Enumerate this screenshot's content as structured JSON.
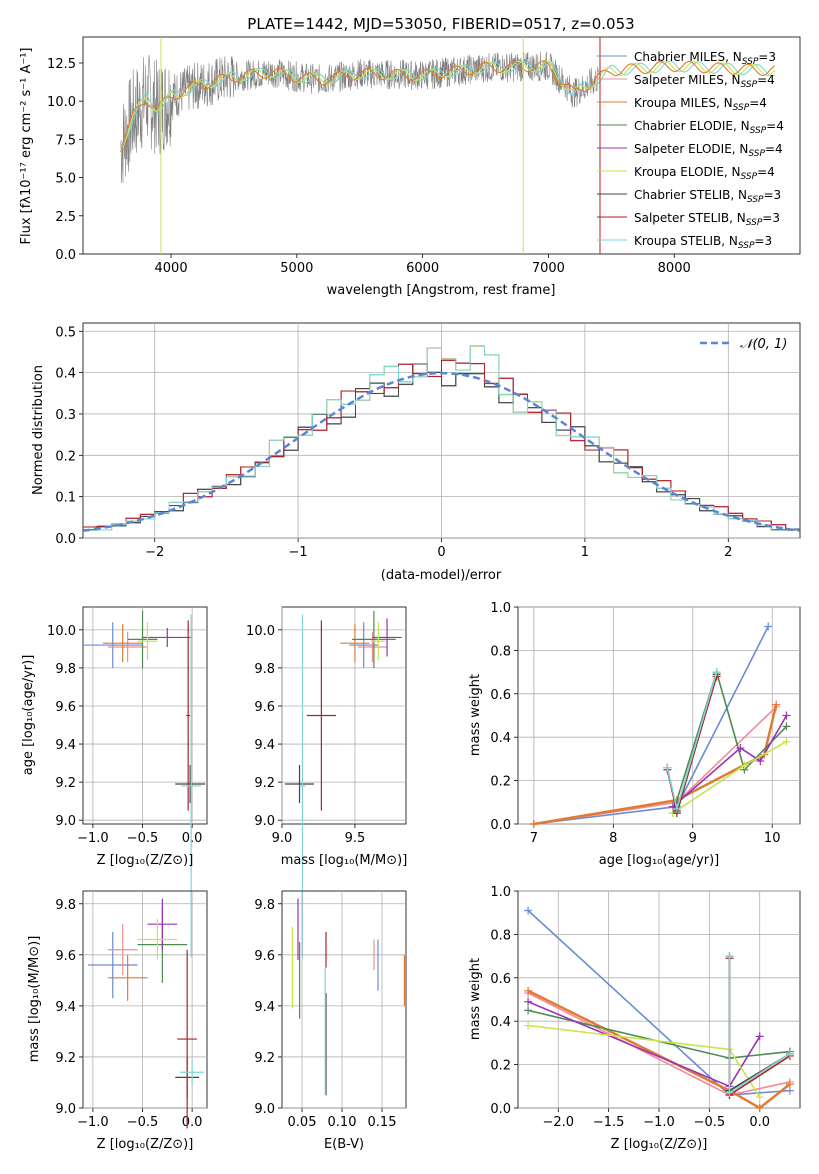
{
  "colors": [
    "#6a8bd8",
    "#f28c92",
    "#e07a35",
    "#4f8a4f",
    "#9932b5",
    "#c8e64a",
    "#444444",
    "#b22222",
    "#7fd4d8"
  ],
  "chart_data": [
    {
      "type": "line",
      "title": "PLATE=1442, MJD=53050, FIBERID=0517, z=0.053",
      "xlabel": "wavelength [Angstrom, rest frame]",
      "ylabel": "Flux [fλ10⁻¹⁷ erg cm⁻² s⁻¹ A⁻¹]",
      "xlim": [
        3300,
        9000
      ],
      "ylim": [
        0,
        14.2
      ],
      "xticks": [
        "4000",
        "5000",
        "6000",
        "7000",
        "8000"
      ],
      "yticks": [
        "0.0",
        "2.5",
        "5.0",
        "7.5",
        "10.0",
        "12.5"
      ],
      "legend": [
        "Chabrier MILES, N_SSP=3",
        "Salpeter MILES, N_SSP=4",
        "Kroupa MILES, N_SSP=4",
        "Chabrier ELODIE, N_SSP=4",
        "Salpeter ELODIE, N_SSP=4",
        "Kroupa ELODIE, N_SSP=4",
        "Chabrier STELIB, N_SSP=3",
        "Salpeter STELIB, N_SSP=3",
        "Kroupa STELIB, N_SSP=3"
      ],
      "legend_position": "upper-right",
      "spectrum_envelope": {
        "x": [
          3600,
          3700,
          3800,
          3900,
          4000,
          4200,
          4500,
          4800,
          5000,
          5200,
          5500,
          6000,
          6500,
          7000,
          7200,
          7500,
          8000,
          8500,
          8800
        ],
        "y": [
          7.0,
          9.0,
          10.2,
          9.5,
          10.3,
          11.0,
          11.6,
          11.9,
          11.6,
          11.4,
          11.8,
          11.7,
          12.2,
          12.3,
          10.5,
          12.0,
          12.3,
          12.1,
          12.0
        ]
      }
    },
    {
      "type": "line",
      "xlabel": "(data-model)/error",
      "ylabel": "Normed distribution",
      "xlim": [
        -2.5,
        2.5
      ],
      "ylim": [
        0,
        0.52
      ],
      "xticks": [
        "−2",
        "−1",
        "0",
        "1",
        "2"
      ],
      "yticks": [
        "0.0",
        "0.1",
        "0.2",
        "0.3",
        "0.4",
        "0.5"
      ],
      "legend": [
        "𝒩(0, 1)"
      ],
      "bin_centers": [
        -2.45,
        -2.35,
        -2.25,
        -2.15,
        -2.05,
        -1.95,
        -1.85,
        -1.75,
        -1.65,
        -1.55,
        -1.45,
        -1.35,
        -1.25,
        -1.15,
        -1.05,
        -0.95,
        -0.85,
        -0.75,
        -0.65,
        -0.55,
        -0.45,
        -0.35,
        -0.25,
        -0.15,
        -0.05,
        0.05,
        0.15,
        0.25,
        0.35,
        0.45,
        0.55,
        0.65,
        0.75,
        0.85,
        0.95,
        1.05,
        1.15,
        1.25,
        1.35,
        1.45,
        1.55,
        1.65,
        1.75,
        1.85,
        1.95,
        2.05,
        2.15,
        2.25,
        2.35,
        2.45
      ],
      "series": [
        {
          "values": [
            0.02,
            0.025,
            0.03,
            0.04,
            0.05,
            0.06,
            0.07,
            0.09,
            0.11,
            0.12,
            0.14,
            0.15,
            0.17,
            0.2,
            0.23,
            0.26,
            0.28,
            0.29,
            0.31,
            0.34,
            0.36,
            0.37,
            0.38,
            0.39,
            0.4,
            0.4,
            0.39,
            0.37,
            0.38,
            0.35,
            0.33,
            0.3,
            0.3,
            0.27,
            0.25,
            0.22,
            0.2,
            0.18,
            0.16,
            0.14,
            0.12,
            0.1,
            0.09,
            0.07,
            0.06,
            0.05,
            0.04,
            0.03,
            0.02,
            0.02
          ]
        },
        {
          "values": [
            0.025,
            0.03,
            0.035,
            0.045,
            0.055,
            0.065,
            0.08,
            0.1,
            0.1,
            0.13,
            0.15,
            0.16,
            0.19,
            0.21,
            0.23,
            0.25,
            0.28,
            0.3,
            0.33,
            0.35,
            0.38,
            0.36,
            0.39,
            0.41,
            0.42,
            0.41,
            0.4,
            0.45,
            0.39,
            0.36,
            0.34,
            0.33,
            0.31,
            0.28,
            0.24,
            0.23,
            0.21,
            0.2,
            0.18,
            0.15,
            0.13,
            0.11,
            0.09,
            0.08,
            0.07,
            0.06,
            0.05,
            0.04,
            0.03,
            0.02
          ]
        },
        {
          "values": [
            0.02,
            0.02,
            0.03,
            0.04,
            0.05,
            0.06,
            0.08,
            0.09,
            0.12,
            0.12,
            0.14,
            0.16,
            0.18,
            0.22,
            0.24,
            0.27,
            0.3,
            0.31,
            0.33,
            0.36,
            0.38,
            0.39,
            0.4,
            0.41,
            0.43,
            0.42,
            0.44,
            0.47,
            0.41,
            0.35,
            0.33,
            0.32,
            0.29,
            0.26,
            0.26,
            0.23,
            0.21,
            0.17,
            0.15,
            0.14,
            0.12,
            0.1,
            0.08,
            0.07,
            0.06,
            0.05,
            0.04,
            0.03,
            0.02,
            0.02
          ]
        }
      ],
      "normal_curve": {
        "mean": 0,
        "sigma": 1
      }
    },
    {
      "type": "scatter",
      "xlabel": "Z [log₁₀(Z/Z⊙)]",
      "ylabel": "age  [log₁₀(age/yr)]",
      "xlim": [
        -1.1,
        0.15
      ],
      "ylim": [
        8.98,
        10.12
      ],
      "xticks": [
        "−1.0",
        "−0.5",
        "0.0"
      ],
      "yticks": [
        "9.0",
        "9.2",
        "9.4",
        "9.6",
        "9.8",
        "10.0"
      ],
      "points": [
        {
          "x": -0.8,
          "y": 9.92,
          "xerr": 0.3,
          "yerr": 0.12
        },
        {
          "x": -0.65,
          "y": 9.91,
          "xerr": 0.2,
          "yerr": 0.08
        },
        {
          "x": -0.7,
          "y": 9.93,
          "xerr": 0.2,
          "yerr": 0.1
        },
        {
          "x": -0.5,
          "y": 9.95,
          "xerr": 0.15,
          "yerr": 0.15
        },
        {
          "x": -0.25,
          "y": 9.96,
          "xerr": 0.25,
          "yerr": 0.05
        },
        {
          "x": -0.45,
          "y": 9.94,
          "xerr": 0.1,
          "yerr": 0.1
        },
        {
          "x": -0.02,
          "y": 9.19,
          "xerr": 0.15,
          "yerr": 0.1
        },
        {
          "x": -0.04,
          "y": 9.55,
          "xerr": 0.02,
          "yerr": 0.5
        },
        {
          "x": -0.01,
          "y": 9.18,
          "xerr": 0.1,
          "yerr": 0.9
        }
      ]
    },
    {
      "type": "scatter",
      "xlabel": "mass [log₁₀(M/M⊙)]",
      "ylabel": "",
      "xlim": [
        9.0,
        9.85
      ],
      "ylim": [
        8.98,
        10.12
      ],
      "xticks": [
        "9.0",
        "9.5"
      ],
      "yticks": [
        "9.0",
        "9.2",
        "9.4",
        "9.6",
        "9.8",
        "10.0"
      ],
      "points": [
        {
          "x": 9.56,
          "y": 9.92,
          "xerr": 0.1,
          "yerr": 0.12
        },
        {
          "x": 9.62,
          "y": 9.91,
          "xerr": 0.1,
          "yerr": 0.08
        },
        {
          "x": 9.5,
          "y": 9.93,
          "xerr": 0.1,
          "yerr": 0.1
        },
        {
          "x": 9.63,
          "y": 9.95,
          "xerr": 0.15,
          "yerr": 0.15
        },
        {
          "x": 9.72,
          "y": 9.96,
          "xerr": 0.1,
          "yerr": 0.1
        },
        {
          "x": 9.66,
          "y": 9.94,
          "xerr": 0.05,
          "yerr": 0.1
        },
        {
          "x": 9.12,
          "y": 9.19,
          "xerr": 0.1,
          "yerr": 0.1
        },
        {
          "x": 9.27,
          "y": 9.55,
          "xerr": 0.1,
          "yerr": 0.5
        },
        {
          "x": 9.14,
          "y": 9.18,
          "xerr": 0.02,
          "yerr": 0.9
        }
      ]
    },
    {
      "type": "line",
      "xlabel": "age  [log₁₀(age/yr)]",
      "ylabel": "mass weight",
      "xlim": [
        6.8,
        10.35
      ],
      "ylim": [
        0,
        1.0
      ],
      "xticks": [
        "7",
        "8",
        "9",
        "10"
      ],
      "yticks": [
        "0.0",
        "0.2",
        "0.4",
        "0.6",
        "0.8",
        "1.0"
      ],
      "series": [
        {
          "x": [
            7.0,
            8.8,
            9.95
          ],
          "y": [
            0.0,
            0.08,
            0.91
          ]
        },
        {
          "x": [
            7.0,
            8.8,
            10.05
          ],
          "y": [
            0.0,
            0.1,
            0.54
          ]
        },
        {
          "x": [
            7.0,
            8.8,
            9.9,
            10.05
          ],
          "y": [
            0.0,
            0.11,
            0.32,
            0.55
          ]
        },
        {
          "x": [
            8.75,
            9.3,
            9.65,
            10.18
          ],
          "y": [
            0.05,
            0.7,
            0.25,
            0.45
          ]
        },
        {
          "x": [
            8.75,
            9.6,
            9.85,
            10.18
          ],
          "y": [
            0.08,
            0.35,
            0.29,
            0.5
          ]
        },
        {
          "x": [
            8.75,
            9.65,
            10.18
          ],
          "y": [
            0.05,
            0.27,
            0.38
          ]
        },
        {
          "x": [
            8.68,
            8.8,
            9.3
          ],
          "y": [
            0.26,
            0.05,
            0.69
          ]
        },
        {
          "x": [
            8.68,
            8.8,
            9.3
          ],
          "y": [
            0.25,
            0.06,
            0.68
          ]
        },
        {
          "x": [
            8.68,
            8.8,
            9.3
          ],
          "y": [
            0.26,
            0.07,
            0.7
          ]
        }
      ]
    },
    {
      "type": "scatter",
      "xlabel": "Z [log₁₀(Z/Z⊙)]",
      "ylabel": "mass [log₁₀(M/M⊙)]",
      "xlim": [
        -1.1,
        0.15
      ],
      "ylim": [
        9.0,
        9.85
      ],
      "xticks": [
        "−1.0",
        "−0.5",
        "0.0"
      ],
      "yticks": [
        "9.0",
        "9.2",
        "9.4",
        "9.6",
        "9.8"
      ],
      "points": [
        {
          "x": -0.8,
          "y": 9.56,
          "xerr": 0.25,
          "yerr": 0.13
        },
        {
          "x": -0.7,
          "y": 9.62,
          "xerr": 0.15,
          "yerr": 0.1
        },
        {
          "x": -0.65,
          "y": 9.51,
          "xerr": 0.2,
          "yerr": 0.09
        },
        {
          "x": -0.3,
          "y": 9.64,
          "xerr": 0.25,
          "yerr": 0.15
        },
        {
          "x": -0.3,
          "y": 9.72,
          "xerr": 0.15,
          "yerr": 0.1
        },
        {
          "x": -0.35,
          "y": 9.66,
          "xerr": 0.2,
          "yerr": 0.08
        },
        {
          "x": -0.05,
          "y": 9.12,
          "xerr": 0.12,
          "yerr": 0.08
        },
        {
          "x": -0.05,
          "y": 9.27,
          "xerr": 0.1,
          "yerr": 0.35
        },
        {
          "x": 0.0,
          "y": 9.14,
          "xerr": 0.12,
          "yerr": 0.05
        }
      ]
    },
    {
      "type": "scatter",
      "xlabel": "E(B-V)",
      "ylabel": "",
      "xlim": [
        0.025,
        0.18
      ],
      "ylim": [
        9.0,
        9.85
      ],
      "xticks": [
        "0.05",
        "0.10",
        "0.15"
      ],
      "yticks": [
        "9.0",
        "9.2",
        "9.4",
        "9.6",
        "9.8"
      ],
      "points": [
        {
          "x": 0.145,
          "y": 9.56,
          "yerr": 0.1
        },
        {
          "x": 0.14,
          "y": 9.6,
          "yerr": 0.06
        },
        {
          "x": 0.178,
          "y": 9.5,
          "yerr": 0.1
        },
        {
          "x": 0.047,
          "y": 9.5,
          "yerr": 0.15
        },
        {
          "x": 0.045,
          "y": 9.7,
          "yerr": 0.12
        },
        {
          "x": 0.038,
          "y": 9.55,
          "yerr": 0.16
        },
        {
          "x": 0.08,
          "y": 9.25,
          "yerr": 0.2
        },
        {
          "x": 0.08,
          "y": 9.62,
          "yerr": 0.07
        },
        {
          "x": 0.079,
          "y": 9.3,
          "yerr": 0.25
        }
      ]
    },
    {
      "type": "line",
      "xlabel": "Z [log₁₀(Z/Z⊙)]",
      "ylabel": "mass weight",
      "xlim": [
        -2.4,
        0.4
      ],
      "ylim": [
        0,
        1.0
      ],
      "xticks": [
        "−2.0",
        "−1.5",
        "−1.0",
        "−0.5",
        "0.0"
      ],
      "yticks": [
        "0.0",
        "0.2",
        "0.4",
        "0.6",
        "0.8",
        "1.0"
      ],
      "series": [
        {
          "x": [
            -2.3,
            -0.3,
            0.3
          ],
          "y": [
            0.91,
            0.06,
            0.08
          ]
        },
        {
          "x": [
            -2.3,
            -0.3,
            0.3
          ],
          "y": [
            0.53,
            0.06,
            0.12
          ]
        },
        {
          "x": [
            -2.3,
            -0.3,
            0.0,
            0.3
          ],
          "y": [
            0.54,
            0.08,
            0.0,
            0.11
          ]
        },
        {
          "x": [
            -2.3,
            -0.3,
            0.3
          ],
          "y": [
            0.45,
            0.23,
            0.26
          ]
        },
        {
          "x": [
            -2.3,
            -0.3,
            0.0
          ],
          "y": [
            0.49,
            0.1,
            0.33
          ]
        },
        {
          "x": [
            -2.3,
            -0.3,
            0.0
          ],
          "y": [
            0.38,
            0.27,
            0.05
          ]
        },
        {
          "x": [
            -0.3,
            -0.3,
            0.3
          ],
          "y": [
            0.7,
            0.08,
            0.25
          ]
        },
        {
          "x": [
            -0.3,
            -0.3,
            0.3
          ],
          "y": [
            0.69,
            0.06,
            0.24
          ]
        },
        {
          "x": [
            -0.3,
            -0.3,
            0.3
          ],
          "y": [
            0.7,
            0.07,
            0.25
          ]
        }
      ]
    }
  ]
}
